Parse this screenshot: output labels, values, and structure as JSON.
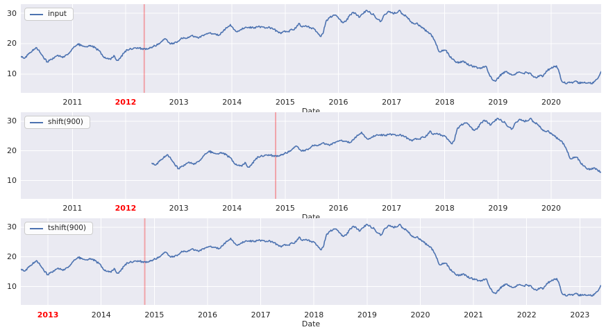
{
  "colors": {
    "figure_background": "#ffffff",
    "axes_background": "#eaeaf2",
    "grid": "#ffffff",
    "series": "#4c72b0",
    "vline": "rgba(255,0,0,0.3)",
    "tick_text": "#262626",
    "highlight_tick_text": "#ff0000"
  },
  "chart_data": {
    "type": "line",
    "xlabel": "Date",
    "ylim": [
      3.8,
      33.0
    ],
    "yticks": [
      10,
      20,
      30
    ],
    "grid": true,
    "legend_position": "upper left",
    "shift_days": 900,
    "shift_offset_years": 2.4657,
    "input_series_points": [
      [
        2010.03,
        15.8
      ],
      [
        2010.1,
        15.2
      ],
      [
        2010.16,
        16.3
      ],
      [
        2010.22,
        17.2
      ],
      [
        2010.28,
        18.2
      ],
      [
        2010.33,
        18.6
      ],
      [
        2010.4,
        16.9
      ],
      [
        2010.46,
        15.3
      ],
      [
        2010.53,
        14.0
      ],
      [
        2010.6,
        14.9
      ],
      [
        2010.66,
        15.3
      ],
      [
        2010.72,
        16.2
      ],
      [
        2010.78,
        15.7
      ],
      [
        2010.84,
        15.6
      ],
      [
        2010.9,
        16.4
      ],
      [
        2010.97,
        17.5
      ],
      [
        2011.03,
        19.0
      ],
      [
        2011.1,
        19.9
      ],
      [
        2011.16,
        19.4
      ],
      [
        2011.22,
        19.1
      ],
      [
        2011.28,
        18.9
      ],
      [
        2011.34,
        19.4
      ],
      [
        2011.42,
        18.7
      ],
      [
        2011.5,
        17.7
      ],
      [
        2011.57,
        15.9
      ],
      [
        2011.64,
        15.1
      ],
      [
        2011.72,
        14.8
      ],
      [
        2011.78,
        16.1
      ],
      [
        2011.84,
        14.5
      ],
      [
        2011.9,
        15.2
      ],
      [
        2011.96,
        16.8
      ],
      [
        2012.03,
        18.0
      ],
      [
        2012.1,
        18.3
      ],
      [
        2012.17,
        18.6
      ],
      [
        2012.24,
        18.5
      ],
      [
        2012.3,
        18.4
      ],
      [
        2012.35,
        18.3
      ],
      [
        2012.42,
        18.2
      ],
      [
        2012.48,
        18.8
      ],
      [
        2012.55,
        19.3
      ],
      [
        2012.62,
        20.0
      ],
      [
        2012.69,
        20.8
      ],
      [
        2012.75,
        21.6
      ],
      [
        2012.81,
        20.4
      ],
      [
        2012.88,
        19.9
      ],
      [
        2012.95,
        20.5
      ],
      [
        2013.02,
        21.3
      ],
      [
        2013.09,
        22.0
      ],
      [
        2013.16,
        21.8
      ],
      [
        2013.23,
        22.6
      ],
      [
        2013.3,
        22.4
      ],
      [
        2013.37,
        21.8
      ],
      [
        2013.44,
        22.7
      ],
      [
        2013.51,
        23.1
      ],
      [
        2013.58,
        23.5
      ],
      [
        2013.65,
        23.2
      ],
      [
        2013.71,
        22.8
      ],
      [
        2013.78,
        23.0
      ],
      [
        2013.84,
        24.3
      ],
      [
        2013.9,
        25.2
      ],
      [
        2013.97,
        26.3
      ],
      [
        2014.03,
        24.7
      ],
      [
        2014.1,
        23.9
      ],
      [
        2014.17,
        24.7
      ],
      [
        2014.24,
        25.2
      ],
      [
        2014.32,
        25.4
      ],
      [
        2014.4,
        25.2
      ],
      [
        2014.48,
        25.5
      ],
      [
        2014.56,
        25.6
      ],
      [
        2014.63,
        25.1
      ],
      [
        2014.71,
        25.3
      ],
      [
        2014.78,
        24.7
      ],
      [
        2014.85,
        24.1
      ],
      [
        2014.92,
        23.3
      ],
      [
        2014.99,
        24.2
      ],
      [
        2015.06,
        24.0
      ],
      [
        2015.13,
        24.6
      ],
      [
        2015.2,
        25.1
      ],
      [
        2015.26,
        26.7
      ],
      [
        2015.32,
        25.5
      ],
      [
        2015.4,
        25.7
      ],
      [
        2015.47,
        25.3
      ],
      [
        2015.54,
        24.9
      ],
      [
        2015.6,
        23.8
      ],
      [
        2015.66,
        22.4
      ],
      [
        2015.71,
        23.3
      ],
      [
        2015.77,
        27.5
      ],
      [
        2015.83,
        28.5
      ],
      [
        2015.89,
        29.1
      ],
      [
        2015.95,
        29.4
      ],
      [
        2016.02,
        28.1
      ],
      [
        2016.08,
        26.9
      ],
      [
        2016.14,
        27.3
      ],
      [
        2016.2,
        29.0
      ],
      [
        2016.27,
        30.3
      ],
      [
        2016.33,
        29.8
      ],
      [
        2016.4,
        28.7
      ],
      [
        2016.46,
        29.8
      ],
      [
        2016.53,
        31.0
      ],
      [
        2016.6,
        30.2
      ],
      [
        2016.67,
        29.4
      ],
      [
        2016.73,
        28.1
      ],
      [
        2016.8,
        27.4
      ],
      [
        2016.86,
        29.4
      ],
      [
        2016.93,
        30.5
      ],
      [
        2017.0,
        30.2
      ],
      [
        2017.07,
        30.0
      ],
      [
        2017.14,
        30.9
      ],
      [
        2017.2,
        29.9
      ],
      [
        2017.27,
        29.1
      ],
      [
        2017.34,
        27.7
      ],
      [
        2017.41,
        26.6
      ],
      [
        2017.48,
        26.8
      ],
      [
        2017.54,
        25.7
      ],
      [
        2017.6,
        24.9
      ],
      [
        2017.66,
        24.0
      ],
      [
        2017.72,
        23.4
      ],
      [
        2017.78,
        22.0
      ],
      [
        2017.84,
        19.6
      ],
      [
        2017.9,
        17.3
      ],
      [
        2017.96,
        17.6
      ],
      [
        2018.02,
        17.8
      ],
      [
        2018.08,
        16.2
      ],
      [
        2018.14,
        14.9
      ],
      [
        2018.2,
        14.1
      ],
      [
        2018.28,
        13.7
      ],
      [
        2018.34,
        14.3
      ],
      [
        2018.41,
        13.4
      ],
      [
        2018.48,
        12.8
      ],
      [
        2018.56,
        12.3
      ],
      [
        2018.64,
        12.0
      ],
      [
        2018.71,
        12.2
      ],
      [
        2018.78,
        12.5
      ],
      [
        2018.84,
        9.7
      ],
      [
        2018.9,
        8.1
      ],
      [
        2018.96,
        7.7
      ],
      [
        2019.02,
        9.1
      ],
      [
        2019.08,
        10.2
      ],
      [
        2019.14,
        10.7
      ],
      [
        2019.2,
        10.4
      ],
      [
        2019.27,
        9.7
      ],
      [
        2019.33,
        10.1
      ],
      [
        2019.4,
        10.7
      ],
      [
        2019.47,
        10.2
      ],
      [
        2019.54,
        10.5
      ],
      [
        2019.6,
        10.3
      ],
      [
        2019.66,
        9.3
      ],
      [
        2019.72,
        8.7
      ],
      [
        2019.78,
        9.4
      ],
      [
        2019.85,
        9.3
      ],
      [
        2019.91,
        11.0
      ],
      [
        2019.97,
        11.7
      ],
      [
        2020.04,
        12.2
      ],
      [
        2020.1,
        12.7
      ],
      [
        2020.15,
        10.6
      ],
      [
        2020.19,
        8.0
      ],
      [
        2020.24,
        7.2
      ],
      [
        2020.29,
        6.8
      ],
      [
        2020.34,
        7.4
      ],
      [
        2020.4,
        7.0
      ],
      [
        2020.46,
        7.7
      ],
      [
        2020.52,
        7.1
      ],
      [
        2020.58,
        7.3
      ],
      [
        2020.64,
        7.1
      ],
      [
        2020.7,
        7.2
      ],
      [
        2020.76,
        6.9
      ],
      [
        2020.82,
        7.6
      ],
      [
        2020.87,
        8.4
      ],
      [
        2020.91,
        9.6
      ],
      [
        2020.94,
        10.8
      ]
    ],
    "subplots": [
      {
        "legend": "input",
        "xlim": [
          2010.03,
          2020.94
        ],
        "xticks": [
          2011,
          2012,
          2013,
          2014,
          2015,
          2016,
          2017,
          2018,
          2019,
          2020
        ],
        "red_tick": 2012,
        "vline_x": 2012.35,
        "offset_years": 0
      },
      {
        "legend": "shift(900)",
        "xlim": [
          2010.03,
          2020.94
        ],
        "xticks": [
          2011,
          2012,
          2013,
          2014,
          2015,
          2016,
          2017,
          2018,
          2019,
          2020
        ],
        "red_tick": 2012,
        "vline_x": 2014.82,
        "offset_years": 2.4657
      },
      {
        "legend": "tshift(900)",
        "xlim": [
          2012.49,
          2023.4
        ],
        "xticks": [
          2013,
          2014,
          2015,
          2016,
          2017,
          2018,
          2019,
          2020,
          2021,
          2022,
          2023
        ],
        "red_tick": 2013,
        "vline_x": 2014.82,
        "offset_years": 2.4657
      }
    ]
  }
}
